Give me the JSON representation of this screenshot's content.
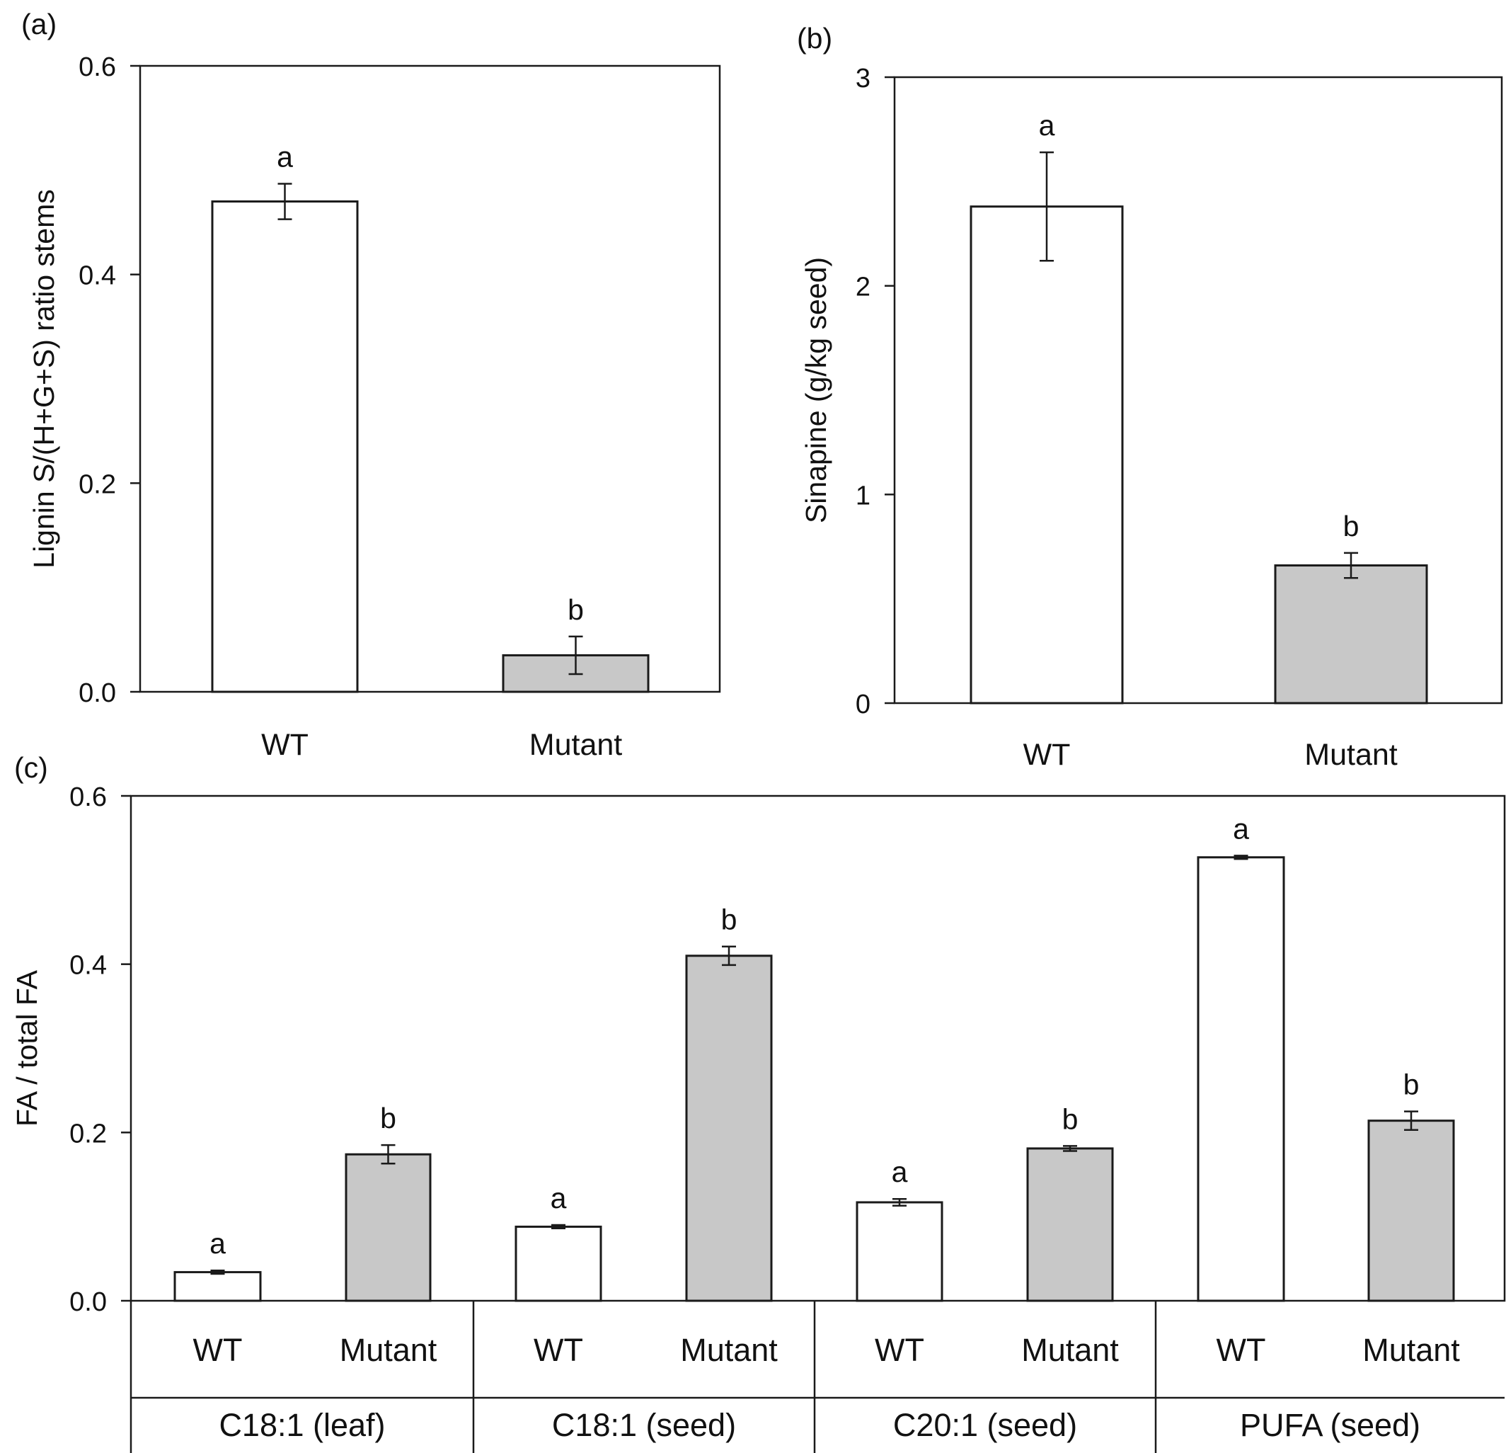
{
  "chart_data": [
    {
      "panel_label": "(a)",
      "type": "bar",
      "categories": [
        "WT",
        "Mutant"
      ],
      "values": [
        0.47,
        0.035
      ],
      "errors": [
        0.017,
        0.018
      ],
      "significance": [
        "a",
        "b"
      ],
      "bar_colors": [
        "#ffffff",
        "#c8c8c8"
      ],
      "ylabel": "Lignin S/(H+G+S) ratio stems",
      "xlabel": "",
      "ylim": [
        0,
        0.6
      ],
      "yticks": [
        "0.0",
        "0.2",
        "0.4",
        "0.6"
      ],
      "grid": false
    },
    {
      "panel_label": "(b)",
      "type": "bar",
      "categories": [
        "WT",
        "Mutant"
      ],
      "values": [
        2.38,
        0.66
      ],
      "errors": [
        0.26,
        0.06
      ],
      "significance": [
        "a",
        "b"
      ],
      "bar_colors": [
        "#ffffff",
        "#c8c8c8"
      ],
      "ylabel": "Sinapine (g/kg seed)",
      "xlabel": "",
      "ylim": [
        0,
        3
      ],
      "yticks": [
        "0",
        "1",
        "2",
        "3"
      ],
      "grid": false
    },
    {
      "panel_label": "(c)",
      "type": "bar",
      "groups": [
        "C18:1 (leaf)",
        "C18:1 (seed)",
        "C20:1 (seed)",
        "PUFA (seed)"
      ],
      "categories": [
        "WT",
        "Mutant",
        "WT",
        "Mutant",
        "WT",
        "Mutant",
        "WT",
        "Mutant"
      ],
      "values": [
        0.034,
        0.174,
        0.088,
        0.41,
        0.117,
        0.181,
        0.527,
        0.214
      ],
      "errors": [
        0.002,
        0.011,
        0.002,
        0.011,
        0.004,
        0.003,
        0.002,
        0.011
      ],
      "significance": [
        "a",
        "b",
        "a",
        "b",
        "a",
        "b",
        "a",
        "b"
      ],
      "bar_colors": [
        "#ffffff",
        "#c8c8c8"
      ],
      "ylabel": "FA / total FA",
      "xlabel": "",
      "ylim": [
        0,
        0.6
      ],
      "yticks": [
        "0.0",
        "0.2",
        "0.4",
        "0.6"
      ],
      "grid": false
    }
  ]
}
